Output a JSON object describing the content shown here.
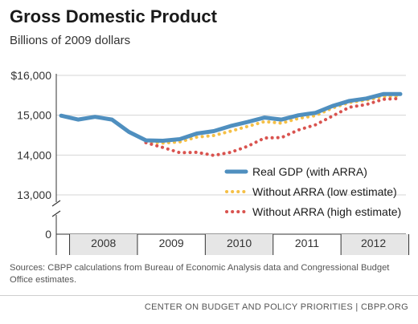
{
  "chart_data": {
    "type": "line",
    "title": "Gross Domestic Product",
    "subtitle": "Billions of 2009 dollars",
    "x": [
      "2007Q4",
      "2008Q1",
      "2008Q2",
      "2008Q3",
      "2008Q4",
      "2009Q1",
      "2009Q2",
      "2009Q3",
      "2009Q4",
      "2010Q1",
      "2010Q2",
      "2010Q3",
      "2010Q4",
      "2011Q1",
      "2011Q2",
      "2011Q3",
      "2011Q4",
      "2012Q1",
      "2012Q2",
      "2012Q3",
      "2012Q4"
    ],
    "year_labels": [
      "2008",
      "2009",
      "2010",
      "2011",
      "2012"
    ],
    "y_ticks": [
      0,
      13000,
      14000,
      15000,
      16000
    ],
    "y_tick_labels": [
      "0",
      "13,000",
      "14,000",
      "15,000",
      "$16,000"
    ],
    "y_axis_break": true,
    "ylim": [
      13000,
      16000
    ],
    "grid": true,
    "legend_position": "lower-right",
    "series": [
      {
        "name": "Real GDP (with ARRA)",
        "color": "#4f8fbf",
        "style": "solid",
        "values": [
          14990,
          14890,
          14960,
          14890,
          14580,
          14370,
          14360,
          14400,
          14540,
          14600,
          14730,
          14830,
          14940,
          14890,
          15000,
          15060,
          15230,
          15360,
          15420,
          15530,
          15530
        ]
      },
      {
        "name": "Without ARRA (low estimate)",
        "color": "#f5c046",
        "style": "dotted",
        "values": [
          null,
          null,
          null,
          null,
          null,
          14330,
          14300,
          14330,
          14450,
          14490,
          14600,
          14720,
          14840,
          14800,
          14920,
          14990,
          15180,
          15320,
          15380,
          15470,
          15480
        ]
      },
      {
        "name": "Without ARRA (high estimate)",
        "color": "#d9534f",
        "style": "dotted",
        "values": [
          null,
          null,
          null,
          null,
          null,
          14310,
          14190,
          14060,
          14070,
          13990,
          14070,
          14220,
          14430,
          14440,
          14630,
          14760,
          14980,
          15200,
          15270,
          15400,
          15420
        ]
      }
    ]
  },
  "source": "Sources: CBPP calculations from Bureau of Economic Analysis data and Congressional Budget Office estimates.",
  "footer": "CENTER ON BUDGET AND POLICY PRIORITIES | CBPP.ORG"
}
